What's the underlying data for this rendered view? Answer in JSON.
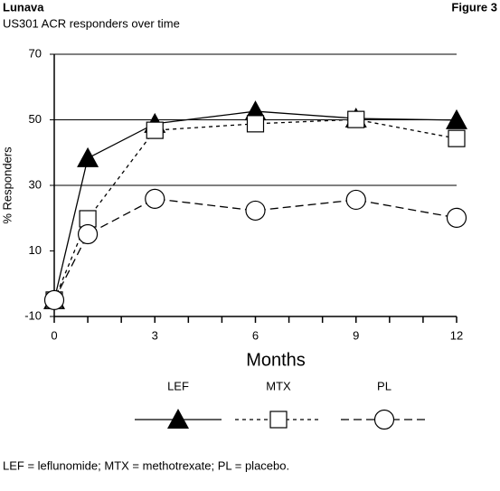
{
  "header": "Lunava",
  "figure_label": "Figure 3",
  "chart_data": {
    "type": "line",
    "title": "US301 ACR responders over time",
    "x_label": "Months",
    "y_label": "% Responders",
    "x": [
      0,
      1,
      3,
      6,
      9,
      12
    ],
    "series": [
      {
        "name": "LEF",
        "color": "#000000",
        "dash": "solid",
        "marker": "triangle",
        "values": [
          -5,
          38.3,
          48.8,
          52.6,
          50.4,
          49.9
        ]
      },
      {
        "name": "MTX",
        "color": "#000000",
        "dash": "short",
        "marker": "square",
        "values": [
          -5,
          19.8,
          46.8,
          48.8,
          50.1,
          44.3
        ]
      },
      {
        "name": "PL",
        "color": "#000000",
        "dash": "long",
        "marker": "circle",
        "values": [
          -5,
          15.1,
          25.9,
          22.3,
          25.6,
          20.1
        ]
      }
    ],
    "xlim": [
      0,
      12
    ],
    "xticks": [
      0,
      3,
      6,
      9,
      12
    ],
    "xminorticks": [
      1,
      2,
      4,
      5,
      7,
      8,
      10,
      11
    ],
    "ylim": [
      -10,
      70
    ],
    "yticks": [
      -10,
      10,
      30,
      50,
      70
    ],
    "gridlines": [
      30,
      50,
      70
    ],
    "legend": "bottom"
  },
  "footnote": "LEF = leflunomide; MTX = methotrexate; PL = placebo."
}
